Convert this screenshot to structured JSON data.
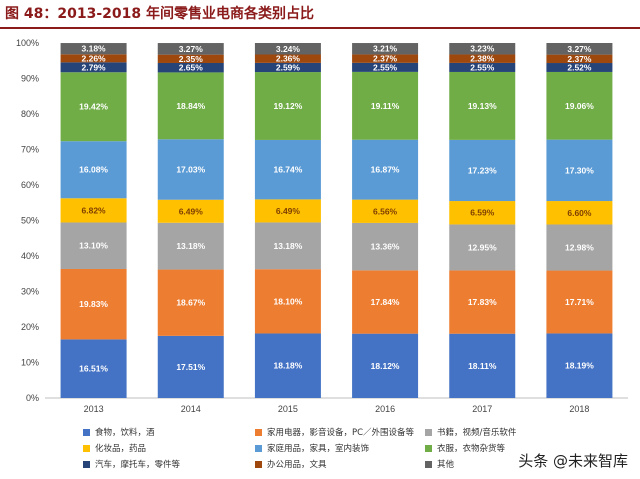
{
  "title": "图 48：2013-2018 年间零售业电商各类别占比",
  "watermark": "头条 @未来智库",
  "colors": {
    "food": "#4472c4",
    "appliance": "#ed7d31",
    "books": "#a5a5a5",
    "cosmetics": "#ffc000",
    "home": "#5b9bd5",
    "clothing": "#70ad47",
    "auto": "#264478",
    "office": "#9e480e",
    "other": "#636363"
  },
  "chart_data": {
    "type": "bar",
    "stacked": true,
    "categories": [
      "2013",
      "2014",
      "2015",
      "2016",
      "2017",
      "2018"
    ],
    "ylim": [
      0,
      100
    ],
    "yticks": [
      "0%",
      "10%",
      "20%",
      "30%",
      "40%",
      "50%",
      "60%",
      "70%",
      "80%",
      "90%",
      "100%"
    ],
    "grid": false,
    "legend_position": "bottom",
    "series": [
      {
        "key": "food",
        "name": "食物，饮料，酒",
        "values": [
          16.51,
          17.51,
          18.18,
          18.12,
          18.11,
          18.19
        ],
        "labels": [
          "16.51%",
          "17.51%",
          "18.18%",
          "18.12%",
          "18.11%",
          "18.19%"
        ]
      },
      {
        "key": "appliance",
        "name": "家用电器，影音设备，PC／外围设备等",
        "values": [
          19.83,
          18.67,
          18.1,
          17.84,
          17.83,
          17.71
        ],
        "labels": [
          "19.83%",
          "18.67%",
          "18.10%",
          "17.84%",
          "17.83%",
          "17.71%"
        ]
      },
      {
        "key": "books",
        "name": "书籍，视频/音乐软件",
        "values": [
          13.1,
          13.18,
          13.18,
          13.36,
          12.95,
          12.98
        ],
        "labels": [
          "13.10%",
          "13.18%",
          "13.18%",
          "13.36%",
          "12.95%",
          "12.98%"
        ]
      },
      {
        "key": "cosmetics",
        "name": "化妆品，药品",
        "values": [
          6.82,
          6.49,
          6.49,
          6.56,
          6.59,
          6.6
        ],
        "labels": [
          "6.82%",
          "6.49%",
          "6.49%",
          "6.56%",
          "6.59%",
          "6.60%"
        ]
      },
      {
        "key": "home",
        "name": "家庭用品，家具，室内装饰",
        "values": [
          16.08,
          17.03,
          16.74,
          16.87,
          17.23,
          17.3
        ],
        "labels": [
          "16.08%",
          "17.03%",
          "16.74%",
          "16.87%",
          "17.23%",
          "17.30%"
        ]
      },
      {
        "key": "clothing",
        "name": "衣服，衣物杂货等",
        "values": [
          19.42,
          18.84,
          19.12,
          19.11,
          19.13,
          19.06
        ],
        "labels": [
          "19.42%",
          "18.84%",
          "19.12%",
          "19.11%",
          "19.13%",
          "19.06%"
        ]
      },
      {
        "key": "auto",
        "name": "汽车，摩托车，零件等",
        "values": [
          2.79,
          2.65,
          2.59,
          2.55,
          2.55,
          2.52
        ],
        "labels": [
          "2.79%",
          "2.65%",
          "2.59%",
          "2.55%",
          "2.55%",
          "2.52%"
        ]
      },
      {
        "key": "office",
        "name": "办公用品，文具",
        "values": [
          2.26,
          2.35,
          2.36,
          2.37,
          2.38,
          2.37
        ],
        "labels": [
          "2.26%",
          "2.35%",
          "2.36%",
          "2.37%",
          "2.38%",
          "2.37%"
        ]
      },
      {
        "key": "other",
        "name": "其他",
        "values": [
          3.18,
          3.27,
          3.24,
          3.21,
          3.23,
          3.27
        ],
        "labels": [
          "3.18%",
          "3.27%",
          "3.24%",
          "3.21%",
          "3.23%",
          "3.27%"
        ]
      }
    ]
  }
}
